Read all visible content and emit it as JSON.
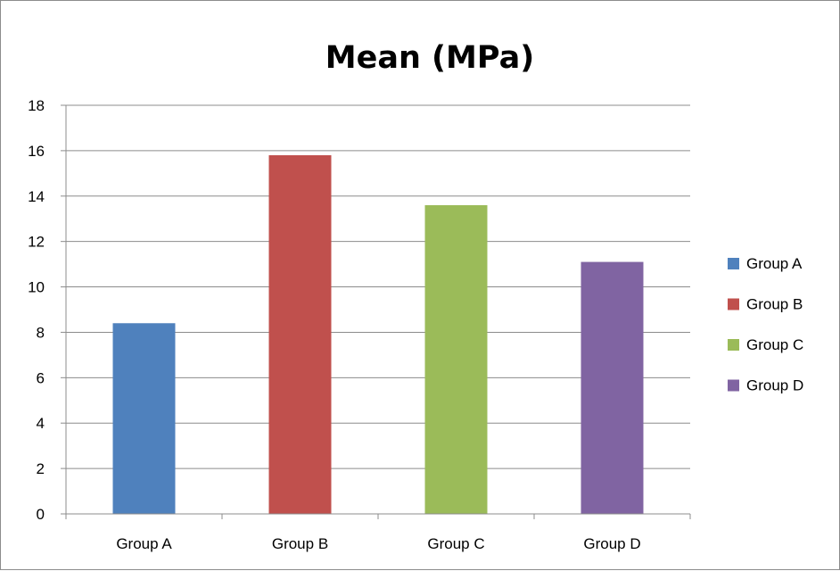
{
  "chart_data": {
    "type": "bar",
    "title": "Mean (MPa)",
    "xlabel": "",
    "ylabel": "",
    "categories": [
      "Group A",
      "Group B",
      "Group C",
      "Group D"
    ],
    "series": [
      {
        "name": "Group A",
        "category": "Group A",
        "value": 8.4,
        "color": "#4f81bd"
      },
      {
        "name": "Group B",
        "category": "Group B",
        "value": 15.8,
        "color": "#c0504d"
      },
      {
        "name": "Group C",
        "category": "Group C",
        "value": 13.6,
        "color": "#9bbb59"
      },
      {
        "name": "Group D",
        "category": "Group D",
        "value": 11.1,
        "color": "#8064a2"
      }
    ],
    "ylim": [
      0,
      18
    ],
    "yticks": [
      0,
      2,
      4,
      6,
      8,
      10,
      12,
      14,
      16,
      18
    ],
    "grid": true,
    "legend_position": "right"
  }
}
